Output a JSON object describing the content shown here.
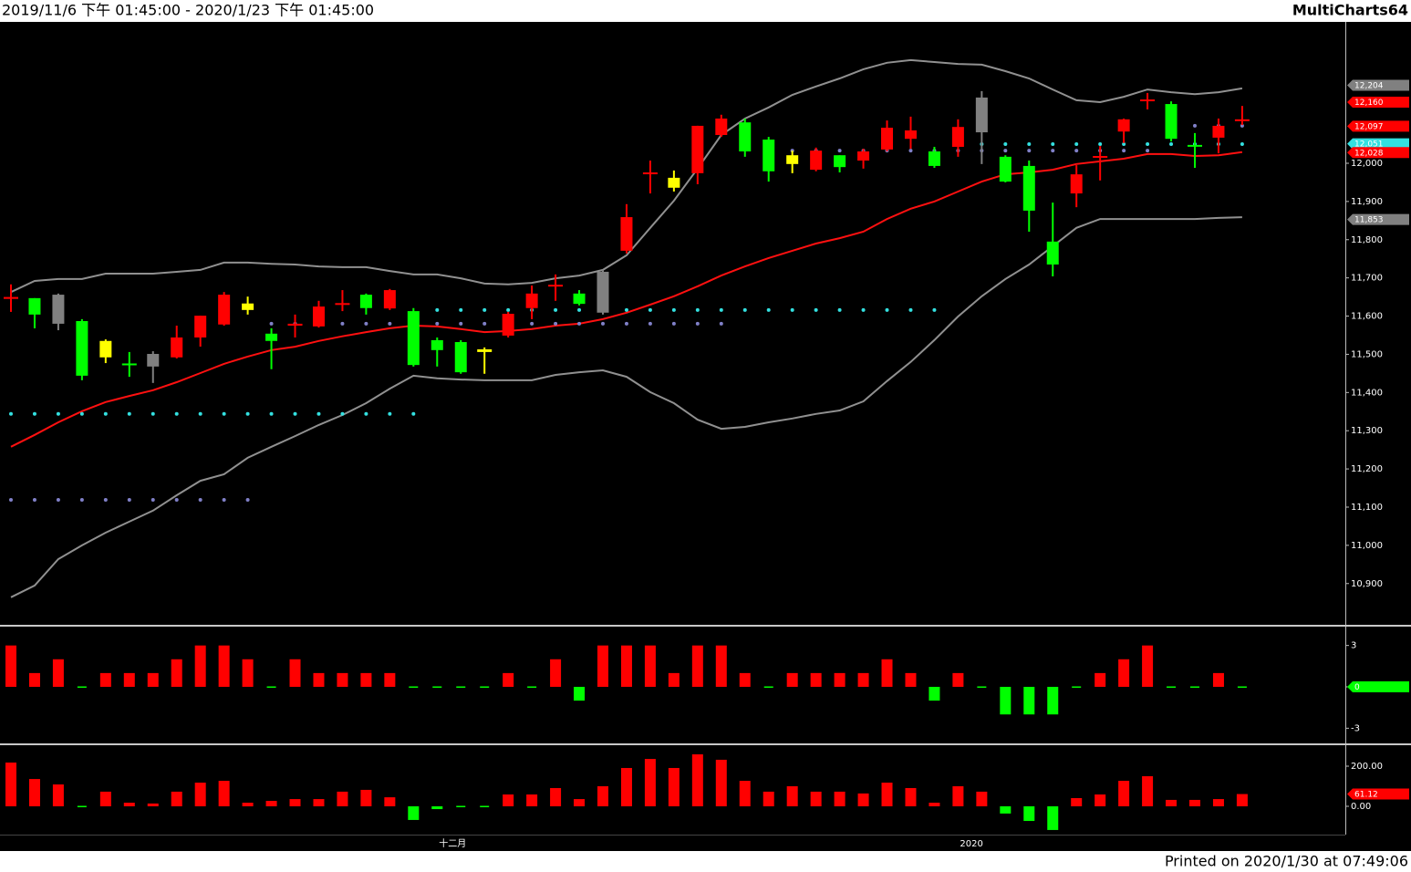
{
  "header": {
    "range": "2019/11/6 下午 01:45:00 - 2020/1/23 下午 01:45:00",
    "app": "MultiCharts64"
  },
  "footer": "Printed on 2020/1/30 at 07:49:06",
  "chart_data": [
    {
      "type": "candlestick",
      "categories": [
        null,
        null,
        null,
        null,
        null,
        null,
        null,
        null,
        null,
        null,
        null,
        null,
        null,
        null,
        null,
        null,
        null,
        null,
        "十二月",
        null,
        null,
        null,
        null,
        null,
        null,
        null,
        null,
        null,
        null,
        null,
        null,
        null,
        null,
        null,
        null,
        null,
        null,
        null,
        null,
        null,
        "2020",
        null,
        null,
        null,
        null,
        null,
        null,
        null,
        null,
        null,
        null,
        null,
        null
      ],
      "open": [
        11645,
        11647,
        11656,
        11587,
        11535,
        11476,
        11501,
        11492,
        11544,
        11578,
        11633,
        11554,
        11575,
        11573,
        11630,
        11656,
        11620,
        11613,
        11537,
        11532,
        11513,
        11549,
        11621,
        11678,
        11659,
        11716,
        11771,
        11972,
        11962,
        11974,
        12074,
        12107,
        12062,
        12021,
        11983,
        12021,
        12007,
        12036,
        12064,
        12031,
        12043,
        12172,
        12017,
        11993,
        11795,
        11921,
        12017,
        12083,
        12165,
        12155,
        12048,
        12067,
        12113
      ],
      "high": [
        11683,
        11647,
        11659,
        11592,
        11539,
        11506,
        11508,
        11575,
        11601,
        11663,
        11651,
        11568,
        11604,
        11640,
        11668,
        11659,
        11671,
        11621,
        11544,
        11537,
        11518,
        11611,
        11680,
        11709,
        11668,
        11721,
        11893,
        12007,
        11981,
        12098,
        12127,
        12117,
        12069,
        12033,
        12041,
        12021,
        12038,
        12112,
        12122,
        12043,
        12115,
        12189,
        12021,
        12007,
        11897,
        11995,
        12045,
        12117,
        12184,
        12162,
        12079,
        12117,
        12150
      ],
      "low": [
        11611,
        11568,
        11563,
        11432,
        11477,
        11441,
        11425,
        11489,
        11520,
        11575,
        11604,
        11461,
        11544,
        11570,
        11613,
        11604,
        11616,
        11468,
        11468,
        11449,
        11449,
        11544,
        11592,
        11640,
        11628,
        11604,
        11764,
        11921,
        11926,
        11945,
        12069,
        12017,
        11952,
        11974,
        11979,
        11976,
        11986,
        12031,
        12038,
        11988,
        12017,
        11998,
        11950,
        11821,
        11704,
        11885,
        11955,
        12053,
        12141,
        12057,
        11988,
        12026,
        12100
      ],
      "close": [
        11650,
        11604,
        11580,
        11444,
        11492,
        11474,
        11468,
        11544,
        11601,
        11656,
        11616,
        11535,
        11580,
        11625,
        11634,
        11621,
        11668,
        11472,
        11511,
        11453,
        11506,
        11606,
        11659,
        11682,
        11632,
        11609,
        11859,
        11976,
        11936,
        12098,
        12117,
        12031,
        11979,
        11998,
        12033,
        11990,
        12031,
        12093,
        12086,
        11993,
        12095,
        12081,
        11952,
        11876,
        11735,
        11971,
        12019,
        12115,
        12167,
        12064,
        12045,
        12098,
        12115
      ],
      "colors": [
        "#ff0000",
        "#00ff00",
        "#808080",
        "#00ff00",
        "#ffff00",
        "#00ff00",
        "#808080",
        "#ff0000",
        "#ff0000",
        "#ff0000",
        "#ffff00",
        "#00ff00",
        "#ff0000",
        "#ff0000",
        "#ff0000",
        "#00ff00",
        "#ff0000",
        "#00ff00",
        "#00ff00",
        "#00ff00",
        "#ffff00",
        "#ff0000",
        "#ff0000",
        "#ff0000",
        "#00ff00",
        "#808080",
        "#ff0000",
        "#ff0000",
        "#ffff00",
        "#ff0000",
        "#ff0000",
        "#00ff00",
        "#00ff00",
        "#ffff00",
        "#ff0000",
        "#00ff00",
        "#ff0000",
        "#ff0000",
        "#ff0000",
        "#00ff00",
        "#ff0000",
        "#808080",
        "#00ff00",
        "#00ff00",
        "#00ff00",
        "#ff0000",
        "#ff0000",
        "#ff0000",
        "#ff0000",
        "#00ff00",
        "#00ff00",
        "#ff0000",
        "#ff0000"
      ],
      "series": [
        {
          "style": "line",
          "color": "#909090",
          "values": [
            11663,
            11692,
            11697,
            11697,
            11711,
            11711,
            11711,
            11716,
            11721,
            11740,
            11740,
            11737,
            11735,
            11730,
            11728,
            11728,
            11718,
            11709,
            11709,
            11699,
            11685,
            11683,
            11687,
            11699,
            11706,
            11721,
            11759,
            11831,
            11902,
            11986,
            12074,
            12117,
            12146,
            12179,
            12201,
            12222,
            12246,
            12263,
            12270,
            12265,
            12260,
            12258,
            12241,
            12222,
            12193,
            12165,
            12160,
            12174,
            12193,
            12186,
            12181,
            12186,
            12196
          ]
        },
        {
          "style": "line",
          "color": "#ff1010",
          "values": [
            11258,
            11289,
            11322,
            11351,
            11375,
            11391,
            11406,
            11427,
            11451,
            11475,
            11494,
            11511,
            11520,
            11535,
            11547,
            11558,
            11568,
            11575,
            11573,
            11566,
            11558,
            11561,
            11566,
            11575,
            11580,
            11592,
            11609,
            11630,
            11652,
            11678,
            11706,
            11730,
            11752,
            11771,
            11790,
            11804,
            11821,
            11854,
            11881,
            11900,
            11926,
            11952,
            11971,
            11976,
            11983,
            11998,
            12005,
            12012,
            12024,
            12024,
            12019,
            12021,
            12029
          ]
        },
        {
          "style": "line",
          "color": "#909090",
          "values": [
            10864,
            10895,
            10964,
            11000,
            11033,
            11062,
            11091,
            11131,
            11169,
            11186,
            11229,
            11258,
            11286,
            11315,
            11341,
            11372,
            11410,
            11444,
            11437,
            11434,
            11432,
            11432,
            11432,
            11446,
            11453,
            11458,
            11441,
            11401,
            11372,
            11329,
            11305,
            11310,
            11322,
            11332,
            11344,
            11353,
            11377,
            11430,
            11480,
            11537,
            11599,
            11652,
            11697,
            11735,
            11783,
            11831,
            11854,
            11854,
            11854,
            11854,
            11854,
            11857,
            11859
          ]
        },
        {
          "style": "dots",
          "color": "#33e0e0",
          "values": [
            11344,
            11344,
            11344,
            11344,
            11344,
            11344,
            11344,
            11344,
            11344,
            11344,
            11344,
            11344,
            11344,
            11344,
            11344,
            11344,
            11344,
            11344,
            11616,
            11616,
            11616,
            11616,
            11616,
            11616,
            11616,
            11616,
            11616,
            11616,
            11616,
            11616,
            11616,
            11616,
            11616,
            11616,
            11616,
            11616,
            11616,
            11616,
            11616,
            11616,
            12050,
            12050,
            12050,
            12050,
            12050,
            12050,
            12050,
            12050,
            12050,
            12050,
            12050,
            12050,
            12050
          ]
        },
        {
          "style": "dots",
          "color": "#8080c8",
          "values": [
            11119,
            11119,
            11119,
            11119,
            11119,
            11119,
            11119,
            11119,
            11119,
            11119,
            11119,
            11580,
            11580,
            11580,
            11580,
            11580,
            11580,
            11580,
            11580,
            11580,
            11580,
            11580,
            11580,
            11580,
            11580,
            11580,
            11580,
            11580,
            11580,
            11580,
            11580,
            null,
            12033,
            12033,
            12033,
            12033,
            12033,
            12033,
            12033,
            12033,
            12033,
            12033,
            12033,
            12033,
            12033,
            12033,
            12033,
            12033,
            12033,
            12098,
            12098,
            12098,
            12098
          ]
        }
      ],
      "last_labels": [
        {
          "value": 12204,
          "label": "12,204",
          "color": "#808080"
        },
        {
          "value": 12160,
          "label": "12,160",
          "color": "#ff0000"
        },
        {
          "value": 12097,
          "label": "12,097",
          "color": "#ff0000"
        },
        {
          "value": 12051,
          "label": "12,051",
          "color": "#33e0e0"
        },
        {
          "value": 12028,
          "label": "12,028",
          "color": "#ff0000"
        },
        {
          "value": 11853,
          "label": "11,853",
          "color": "#808080"
        }
      ],
      "ylim": [
        10792,
        12370
      ],
      "yticks": [
        {
          "value": 10900,
          "label": "10,900"
        },
        {
          "value": 11000,
          "label": "11,000"
        },
        {
          "value": 11100,
          "label": "11,100"
        },
        {
          "value": 11200,
          "label": "11,200"
        },
        {
          "value": 11300,
          "label": "11,300"
        },
        {
          "value": 11400,
          "label": "11,400"
        },
        {
          "value": 11500,
          "label": "11,500"
        },
        {
          "value": 11600,
          "label": "11,600"
        },
        {
          "value": 11700,
          "label": "11,700"
        },
        {
          "value": 11800,
          "label": "11,800"
        },
        {
          "value": 11900,
          "label": "11,900"
        },
        {
          "value": 12000,
          "label": "12,000"
        }
      ]
    },
    {
      "type": "bar",
      "values": [
        3,
        1,
        2,
        0,
        1,
        1,
        1,
        2,
        3,
        3,
        2,
        0,
        2,
        1,
        1,
        1,
        1,
        0,
        0,
        0,
        0,
        1,
        0,
        2,
        -1,
        3,
        3,
        3,
        1,
        3,
        3,
        1,
        0,
        1,
        1,
        1,
        1,
        2,
        1,
        -1,
        1,
        0,
        -2,
        -2,
        -2,
        0,
        1,
        2,
        3,
        0,
        0,
        1,
        0
      ],
      "up_color": "#ff0000",
      "down_color": "#00ff00",
      "last_labels": [
        {
          "value": 0,
          "label": "0",
          "color": "#00ff00"
        }
      ],
      "ylim": [
        -4.1,
        4.3
      ],
      "yticks": [
        3,
        0,
        -3
      ]
    },
    {
      "type": "bar",
      "values": [
        218,
        136,
        109,
        0,
        73,
        18,
        14,
        73,
        118,
        127,
        18,
        27,
        36,
        36,
        73,
        82,
        45,
        -68,
        -14,
        -5,
        -5,
        59,
        59,
        91,
        36,
        100,
        191,
        236,
        191,
        259,
        232,
        127,
        73,
        100,
        73,
        73,
        64,
        118,
        91,
        18,
        100,
        73,
        -36,
        -73,
        -118,
        41,
        59,
        127,
        150,
        32,
        32,
        36,
        61.12
      ],
      "up_color": "#ff0000",
      "down_color": "#00ff00",
      "last_labels": [
        {
          "value": 61.12,
          "label": "61.12",
          "color": "#ff0000"
        }
      ],
      "ylim": [
        -141,
        304.5
      ],
      "yticks": [
        {
          "value": 200,
          "label": "200.00"
        },
        {
          "value": 0,
          "label": "0.00"
        }
      ]
    }
  ]
}
